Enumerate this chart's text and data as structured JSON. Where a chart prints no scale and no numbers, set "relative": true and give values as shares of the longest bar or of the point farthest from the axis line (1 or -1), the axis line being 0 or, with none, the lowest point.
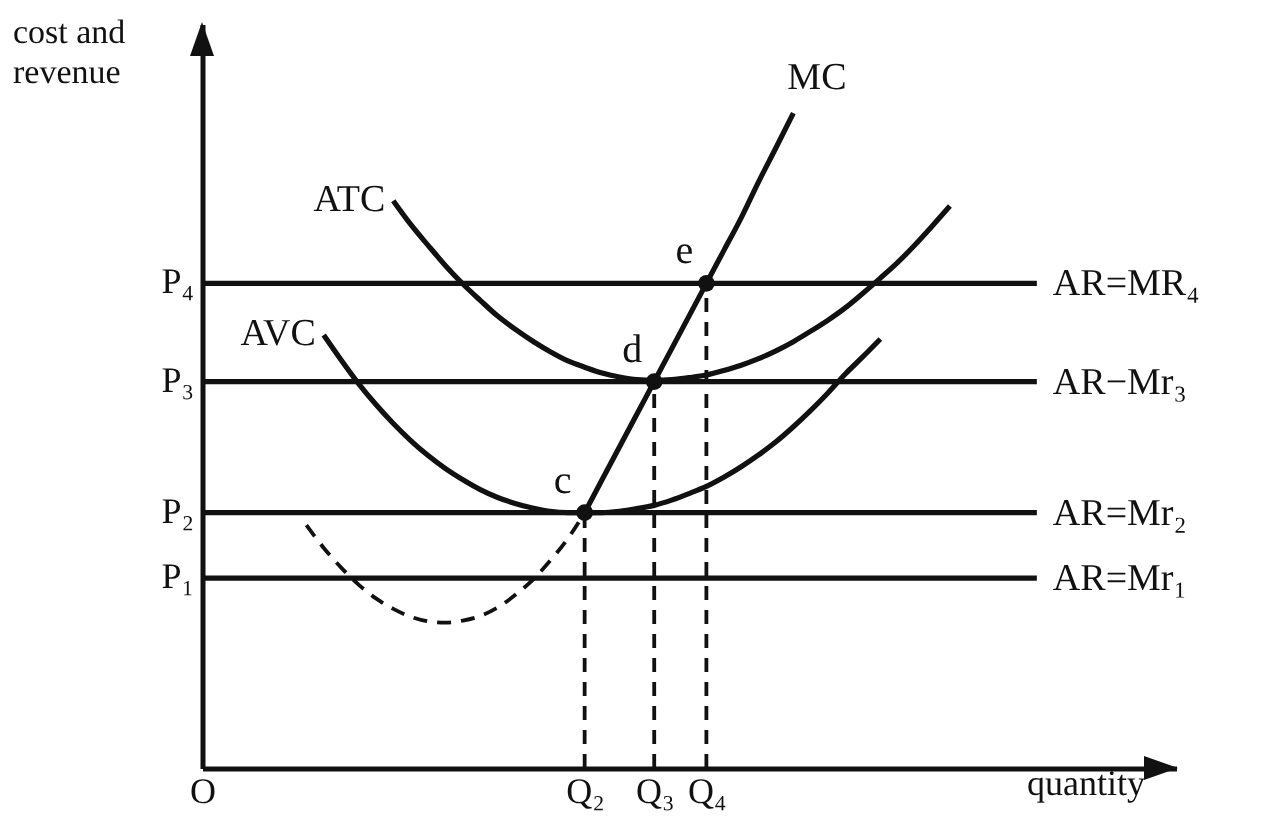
{
  "chart_data": {
    "type": "line",
    "relative": true,
    "xlabel": "quantity",
    "ylabel": "cost and\nrevenue",
    "categories": [
      "O",
      null,
      null,
      null,
      null,
      null,
      null,
      null,
      null,
      null,
      null,
      null,
      null,
      null,
      null,
      null,
      null,
      null,
      null,
      null,
      null,
      null,
      "Q₂",
      null,
      null,
      null,
      "Q₃",
      null,
      null,
      "Q₄",
      null,
      null,
      null,
      null,
      null,
      null,
      null,
      null,
      null,
      null,
      null,
      null,
      null,
      null,
      null,
      null,
      null,
      null,
      null,
      null,
      null,
      null,
      null,
      null,
      null,
      null,
      null
    ],
    "series": [
      {
        "name": "ATC",
        "color": "#111111",
        "values": [
          null,
          null,
          null,
          null,
          null,
          null,
          null,
          null,
          null,
          null,
          null,
          0.866,
          0.83,
          0.798,
          0.767,
          0.739,
          0.714,
          0.69,
          0.67,
          0.652,
          0.636,
          0.622,
          0.612,
          0.603,
          0.597,
          0.593,
          0.592,
          0.593,
          0.596,
          0.6,
          0.607,
          0.615,
          0.625,
          0.637,
          0.651,
          0.667,
          0.684,
          0.703,
          0.725,
          0.748,
          0.772,
          0.799,
          0.828,
          0.858,
          null,
          null,
          null,
          null,
          null,
          null,
          null,
          null,
          null,
          null,
          null,
          null,
          null
        ]
      },
      {
        "name": "AVC",
        "color": "#111111",
        "values": [
          null,
          null,
          null,
          null,
          null,
          null,
          null,
          0.661,
          0.623,
          0.587,
          0.555,
          0.526,
          0.5,
          0.477,
          0.457,
          0.44,
          0.425,
          0.413,
          0.404,
          0.397,
          0.392,
          0.39,
          0.39,
          0.39,
          0.392,
          0.396,
          0.401,
          0.409,
          0.419,
          0.43,
          0.444,
          0.46,
          0.478,
          0.498,
          0.521,
          0.546,
          0.573,
          0.602,
          0.628,
          0.655,
          null,
          null,
          null,
          null,
          null,
          null,
          null,
          null,
          null,
          null,
          null,
          null,
          null,
          null,
          null,
          null,
          null
        ]
      },
      {
        "color": "#111111",
        "line_style": "dashed",
        "values": [
          null,
          null,
          null,
          null,
          null,
          null,
          0.371,
          0.336,
          0.306,
          0.28,
          0.259,
          0.243,
          0.231,
          0.224,
          0.222,
          0.225,
          0.232,
          0.245,
          0.264,
          0.287,
          0.316,
          0.349,
          0.39,
          null,
          null,
          null,
          null,
          null,
          null,
          null,
          null,
          null,
          null,
          null,
          null,
          null,
          null,
          null,
          null,
          null,
          null,
          null,
          null,
          null,
          null,
          null,
          null,
          null,
          null,
          null,
          null,
          null,
          null,
          null,
          null,
          null,
          null
        ]
      },
      {
        "name": "MC",
        "color": "#111111",
        "values": [
          null,
          null,
          null,
          null,
          null,
          null,
          null,
          null,
          null,
          null,
          null,
          null,
          null,
          null,
          null,
          null,
          null,
          null,
          null,
          null,
          null,
          null,
          0.39,
          0.44,
          0.49,
          0.54,
          0.59,
          0.64,
          0.69,
          0.74,
          0.79,
          0.84,
          0.895,
          0.947,
          1,
          null,
          null,
          null,
          null,
          null,
          null,
          null,
          null,
          null,
          null,
          null,
          null,
          null,
          null,
          null,
          null,
          null,
          null,
          null,
          null,
          null,
          null
        ]
      },
      {
        "name": "AR=MR₄",
        "color": "#111111",
        "values": [
          0.74,
          0.74,
          0.74,
          0.74,
          0.74,
          0.74,
          0.74,
          0.74,
          0.74,
          0.74,
          0.74,
          0.74,
          0.74,
          0.74,
          0.74,
          0.74,
          0.74,
          0.74,
          0.74,
          0.74,
          0.74,
          0.74,
          0.74,
          0.74,
          0.74,
          0.74,
          0.74,
          0.74,
          0.74,
          0.74,
          0.74,
          0.74,
          0.74,
          0.74,
          0.74,
          0.74,
          0.74,
          0.74,
          0.74,
          0.74,
          0.74,
          0.74,
          0.74,
          0.74,
          0.74,
          0.74,
          0.74,
          0.74,
          0.74,
          null,
          null,
          null,
          null,
          null,
          null,
          null,
          null
        ]
      },
      {
        "name": "AR−Mr₃",
        "color": "#111111",
        "values": [
          0.59,
          0.59,
          0.59,
          0.59,
          0.59,
          0.59,
          0.59,
          0.59,
          0.59,
          0.59,
          0.59,
          0.59,
          0.59,
          0.59,
          0.59,
          0.59,
          0.59,
          0.59,
          0.59,
          0.59,
          0.59,
          0.59,
          0.59,
          0.59,
          0.59,
          0.59,
          0.59,
          0.59,
          0.59,
          0.59,
          0.59,
          0.59,
          0.59,
          0.59,
          0.59,
          0.59,
          0.59,
          0.59,
          0.59,
          0.59,
          0.59,
          0.59,
          0.59,
          0.59,
          0.59,
          0.59,
          0.59,
          0.59,
          0.59,
          null,
          null,
          null,
          null,
          null,
          null,
          null,
          null
        ]
      },
      {
        "name": "AR=Mr₂",
        "color": "#111111",
        "values": [
          0.39,
          0.39,
          0.39,
          0.39,
          0.39,
          0.39,
          0.39,
          0.39,
          0.39,
          0.39,
          0.39,
          0.39,
          0.39,
          0.39,
          0.39,
          0.39,
          0.39,
          0.39,
          0.39,
          0.39,
          0.39,
          0.39,
          0.39,
          0.39,
          0.39,
          0.39,
          0.39,
          0.39,
          0.39,
          0.39,
          0.39,
          0.39,
          0.39,
          0.39,
          0.39,
          0.39,
          0.39,
          0.39,
          0.39,
          0.39,
          0.39,
          0.39,
          0.39,
          0.39,
          0.39,
          0.39,
          0.39,
          0.39,
          0.39,
          null,
          null,
          null,
          null,
          null,
          null,
          null,
          null
        ]
      },
      {
        "name": "AR=Mr₁",
        "color": "#111111",
        "values": [
          0.29,
          0.29,
          0.29,
          0.29,
          0.29,
          0.29,
          0.29,
          0.29,
          0.29,
          0.29,
          0.29,
          0.29,
          0.29,
          0.29,
          0.29,
          0.29,
          0.29,
          0.29,
          0.29,
          0.29,
          0.29,
          0.29,
          0.29,
          0.29,
          0.29,
          0.29,
          0.29,
          0.29,
          0.29,
          0.29,
          0.29,
          0.29,
          0.29,
          0.29,
          0.29,
          0.29,
          0.29,
          0.29,
          0.29,
          0.29,
          0.29,
          0.29,
          0.29,
          0.29,
          0.29,
          0.29,
          0.29,
          0.29,
          0.29,
          null,
          null,
          null,
          null,
          null,
          null,
          null,
          null
        ]
      },
      {
        "color": "#111111",
        "line_style": "dashed",
        "x": [
          "Q₂",
          "Q₂"
        ],
        "values": [
          0,
          0.39
        ]
      },
      {
        "color": "#111111",
        "line_style": "dashed",
        "x": [
          "Q₃",
          "Q₃"
        ],
        "values": [
          0,
          0.59
        ]
      },
      {
        "color": "#111111",
        "line_style": "dashed",
        "x": [
          "Q₄",
          "Q₄"
        ],
        "values": [
          0,
          0.74
        ]
      },
      {
        "type": "scatter",
        "marker": "circle",
        "color": "#111111",
        "x": [
          "Q₂",
          "Q₃",
          "Q₄"
        ],
        "values": [
          0.39,
          0.59,
          0.74
        ]
      }
    ],
    "annotations": [
      {
        "text": "c",
        "x": "Q₂",
        "y": 0.39
      },
      {
        "text": "d",
        "x": "Q₃",
        "y": 0.59
      },
      {
        "text": "e",
        "x": "Q₄",
        "y": 0.74
      },
      {
        "text": "P₄",
        "x": "O",
        "y": 0.74
      },
      {
        "text": "P₃",
        "x": "O",
        "y": 0.59
      },
      {
        "text": "P₂",
        "x": "O",
        "y": 0.39
      },
      {
        "text": "P₁",
        "x": "O",
        "y": 0.29
      }
    ]
  }
}
